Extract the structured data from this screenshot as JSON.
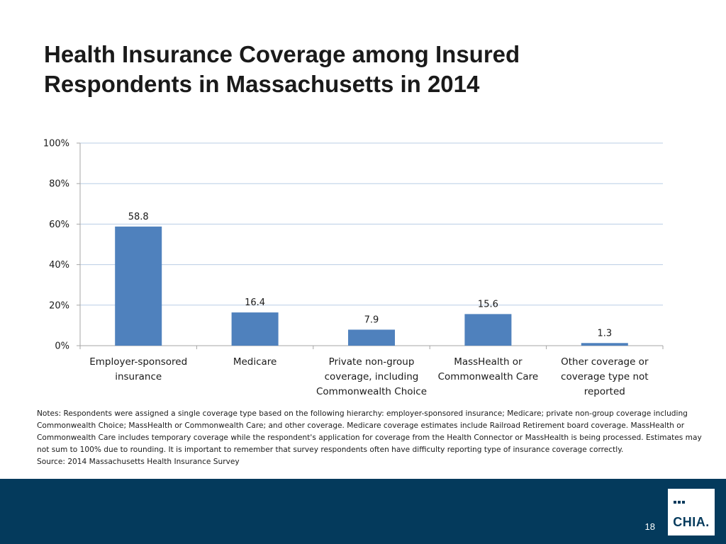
{
  "title_lines": [
    "Health Insurance Coverage among Insured",
    "Respondents in Massachusetts in 2014"
  ],
  "chart_data": {
    "type": "bar",
    "title": "Health Insurance Coverage among Insured Respondents in Massachusetts in 2014",
    "categories": [
      [
        "Employer-sponsored",
        "insurance"
      ],
      [
        "Medicare"
      ],
      [
        "Private non-group",
        "coverage, including",
        "Commonwealth Choice"
      ],
      [
        "MassHealth or",
        "Commonwealth Care"
      ],
      [
        "Other coverage or",
        "coverage type not",
        "reported"
      ]
    ],
    "values": [
      58.8,
      16.4,
      7.9,
      15.6,
      1.3
    ],
    "value_labels": [
      "58.8",
      "16.4",
      "7.9",
      "15.6",
      "1.3"
    ],
    "ylim": [
      0,
      100
    ],
    "yticks": [
      0,
      20,
      40,
      60,
      80,
      100
    ],
    "ytick_labels": [
      "0%",
      "20%",
      "40%",
      "60%",
      "80%",
      "100%"
    ],
    "xlabel": "",
    "ylabel": "",
    "grid": true,
    "bar_color": "#4f81bd",
    "grid_color": "#b9cde5"
  },
  "notes": {
    "text": "Notes: Respondents were assigned a single coverage type based on the following hierarchy: employer-sponsored insurance; Medicare; private non-group coverage including Commonwealth Choice; MassHealth or Commonwealth Care; and other coverage. Medicare coverage estimates include Railroad Retirement board coverage. MassHealth or Commonwealth Care includes temporary coverage while the respondent's application for coverage from the Health Connector or MassHealth is being processed. Estimates may not sum to 100% due to rounding. It is important to remember that survey respondents often have difficulty reporting type of insurance coverage correctly.",
    "source": "Source:  2014 Massachusetts Health Insurance Survey"
  },
  "footer": {
    "page_number": "18",
    "logo_text": "CHIA.",
    "color": "#043a5c"
  }
}
